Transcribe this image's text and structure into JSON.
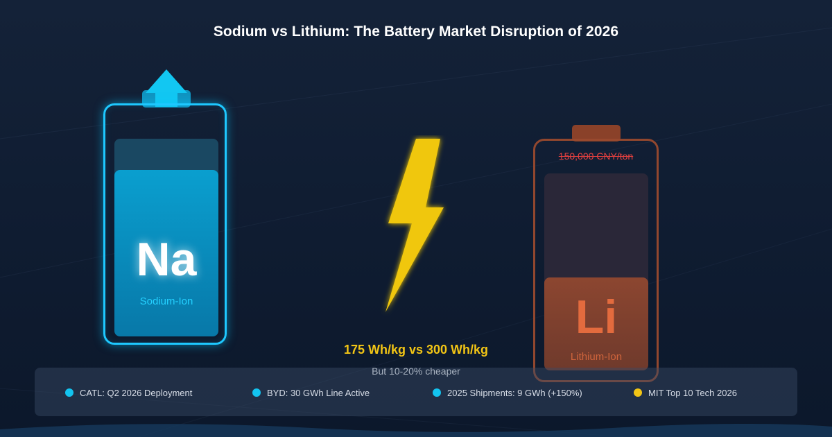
{
  "title": "Sodium vs Lithium: The Battery Market Disruption of 2026",
  "sodium": {
    "symbol": "Na",
    "label": "Sodium-Ion",
    "color": "#1ec8ff",
    "indicator_icon": "up-arrow-icon"
  },
  "lithium": {
    "symbol": "Li",
    "label": "Lithium-Ion",
    "price_struck": "150,000 CNY/ton",
    "color": "#d0643c"
  },
  "center": {
    "icon": "lightning-bolt-icon",
    "comparison": "175 Wh/kg vs 300 Wh/kg",
    "subtext": "But 10-20% cheaper",
    "accent": "#f2c515"
  },
  "stats": [
    {
      "text": "CATL: Q2 2026 Deployment",
      "dot_color": "#13c4f0"
    },
    {
      "text": "BYD: 30 GWh Line Active",
      "dot_color": "#13c4f0"
    },
    {
      "text": "2025 Shipments: 9 GWh (+150%)",
      "dot_color": "#13c4f0"
    },
    {
      "text": "MIT Top 10 Tech 2026",
      "dot_color": "#f2c515"
    }
  ]
}
